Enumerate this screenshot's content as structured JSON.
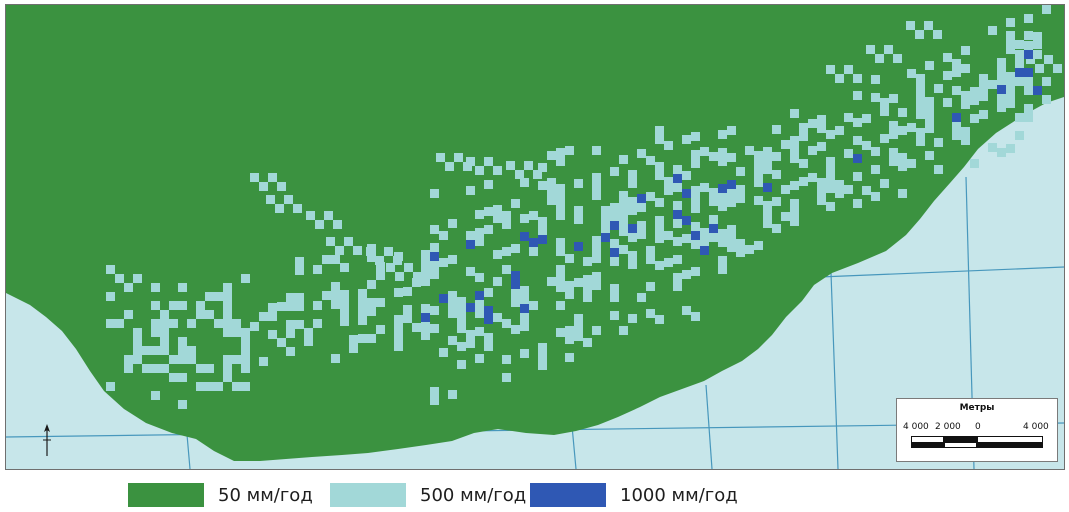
{
  "colors": {
    "class_50": "#3b9240",
    "class_500": "#a2d8d8",
    "class_1000": "#2f58b4",
    "outside": "#c7e6ea",
    "grid_line": "#3a8fb8"
  },
  "legend": {
    "items": [
      {
        "label": "50 мм/год",
        "color": "#3b9240"
      },
      {
        "label": "500 мм/год",
        "color": "#a2d8d8"
      },
      {
        "label": "1000 мм/год",
        "color": "#2f58b4"
      }
    ]
  },
  "scale_bar": {
    "title": "Метры",
    "ticks": [
      "4 000",
      "2 000",
      "0",
      "4 000"
    ]
  },
  "north_arrow": {
    "icon": "north-arrow-icon"
  }
}
